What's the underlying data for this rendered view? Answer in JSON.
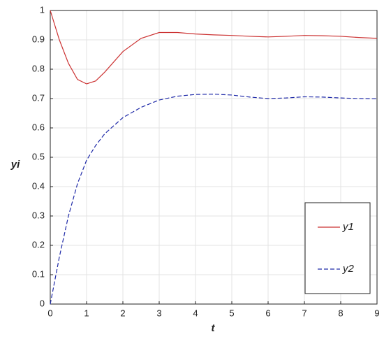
{
  "chart_data": {
    "type": "line",
    "x": [
      0,
      0.25,
      0.5,
      0.75,
      1,
      1.25,
      1.5,
      2,
      2.5,
      3,
      3.5,
      4,
      4.5,
      5,
      5.5,
      6,
      6.5,
      7,
      7.5,
      8,
      8.5,
      9
    ],
    "series": [
      {
        "name": "y1",
        "color": "#cc3333",
        "dash": false,
        "values": [
          1,
          0.9,
          0.82,
          0.765,
          0.75,
          0.76,
          0.79,
          0.86,
          0.905,
          0.925,
          0.925,
          0.92,
          0.917,
          0.915,
          0.912,
          0.91,
          0.912,
          0.915,
          0.914,
          0.912,
          0.908,
          0.905
        ]
      },
      {
        "name": "y2",
        "color": "#1f2aa8",
        "dash": true,
        "values": [
          0,
          0.16,
          0.3,
          0.41,
          0.49,
          0.54,
          0.58,
          0.635,
          0.67,
          0.695,
          0.708,
          0.714,
          0.715,
          0.712,
          0.705,
          0.7,
          0.702,
          0.706,
          0.705,
          0.702,
          0.7,
          0.699
        ]
      }
    ],
    "x_label": "t",
    "y_label": "yi",
    "xlim": [
      0,
      9
    ],
    "xticks": [
      0,
      1,
      2,
      3,
      4,
      5,
      6,
      7,
      8,
      9
    ],
    "ylim": [
      0,
      1
    ],
    "yticks": [
      0,
      0.1,
      0.2,
      0.3,
      0.4,
      0.5,
      0.6,
      0.7,
      0.8,
      0.9,
      1
    ],
    "grid": true,
    "legend": "lower right"
  }
}
